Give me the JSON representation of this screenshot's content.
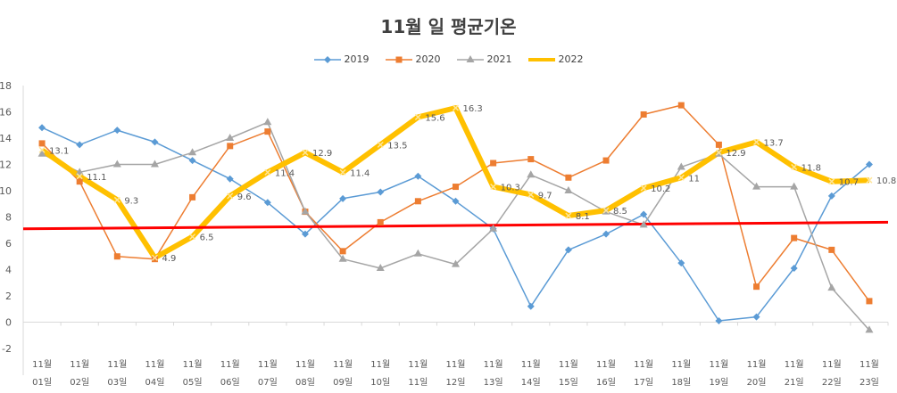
{
  "chart_data": {
    "type": "line",
    "title": "11월 일 평균기온",
    "xlabel": "",
    "ylabel": "",
    "ylim": [
      -2,
      18
    ],
    "yticks": [
      -2,
      0,
      2,
      4,
      6,
      8,
      10,
      12,
      14,
      16,
      18
    ],
    "grid": false,
    "legend_position": "top",
    "categories": [
      [
        "11월",
        "01일"
      ],
      [
        "11월",
        "02일"
      ],
      [
        "11월",
        "03일"
      ],
      [
        "11월",
        "04일"
      ],
      [
        "11월",
        "05일"
      ],
      [
        "11월",
        "06일"
      ],
      [
        "11월",
        "07일"
      ],
      [
        "11월",
        "08일"
      ],
      [
        "11월",
        "09일"
      ],
      [
        "11월",
        "10일"
      ],
      [
        "11월",
        "11일"
      ],
      [
        "11월",
        "12일"
      ],
      [
        "11월",
        "13일"
      ],
      [
        "11월",
        "14일"
      ],
      [
        "11월",
        "15일"
      ],
      [
        "11월",
        "16일"
      ],
      [
        "11월",
        "17일"
      ],
      [
        "11월",
        "18일"
      ],
      [
        "11월",
        "19일"
      ],
      [
        "11월",
        "20일"
      ],
      [
        "11월",
        "21일"
      ],
      [
        "11월",
        "22일"
      ],
      [
        "11월",
        "23일"
      ]
    ],
    "series": [
      {
        "name": "2019",
        "color": "#5b9bd5",
        "marker": "diamond",
        "width": 1.5,
        "values": [
          14.8,
          13.5,
          14.6,
          13.7,
          12.3,
          10.9,
          9.1,
          6.7,
          9.4,
          9.9,
          11.1,
          9.2,
          7.1,
          1.2,
          5.5,
          6.7,
          8.2,
          4.5,
          0.1,
          0.4,
          4.1,
          9.6,
          12.0
        ]
      },
      {
        "name": "2020",
        "color": "#ed7d31",
        "marker": "square",
        "width": 1.5,
        "values": [
          13.6,
          10.7,
          5.0,
          4.8,
          9.5,
          13.4,
          14.5,
          8.4,
          5.4,
          7.6,
          9.2,
          10.3,
          12.1,
          12.4,
          11.0,
          12.3,
          15.8,
          16.5,
          13.5,
          2.7,
          6.4,
          5.5,
          1.6
        ]
      },
      {
        "name": "2021",
        "color": "#a5a5a5",
        "marker": "triangle",
        "width": 1.5,
        "values": [
          12.8,
          11.4,
          12.0,
          12.0,
          12.9,
          14.0,
          15.2,
          8.4,
          4.8,
          4.1,
          5.2,
          4.4,
          7.1,
          11.2,
          10.0,
          8.4,
          7.4,
          11.8,
          12.8,
          10.3,
          10.3,
          2.6,
          -0.6
        ]
      },
      {
        "name": "2022",
        "color": "#ffc000",
        "marker": "x",
        "width": 6,
        "values": [
          13.1,
          11.1,
          9.3,
          4.9,
          6.5,
          9.6,
          11.4,
          12.9,
          11.4,
          13.5,
          15.6,
          16.3,
          10.3,
          9.7,
          8.1,
          8.5,
          10.2,
          11,
          12.9,
          13.7,
          11.8,
          10.7,
          10.8
        ],
        "labels": [
          "13.1",
          "11.1",
          "9.3",
          "4.9",
          "6.5",
          "9.6",
          "11.4",
          "12.9",
          "11.4",
          "13.5",
          "15.6",
          "16.3",
          "10.3",
          "9.7",
          "8.1",
          "8.5",
          "10.2",
          "11",
          "12.9",
          "13.7",
          "11.8",
          "10.7",
          "10.8"
        ]
      }
    ],
    "trendline": {
      "color": "#ff0000",
      "start_value": 7.1,
      "end_value": 7.6
    }
  }
}
